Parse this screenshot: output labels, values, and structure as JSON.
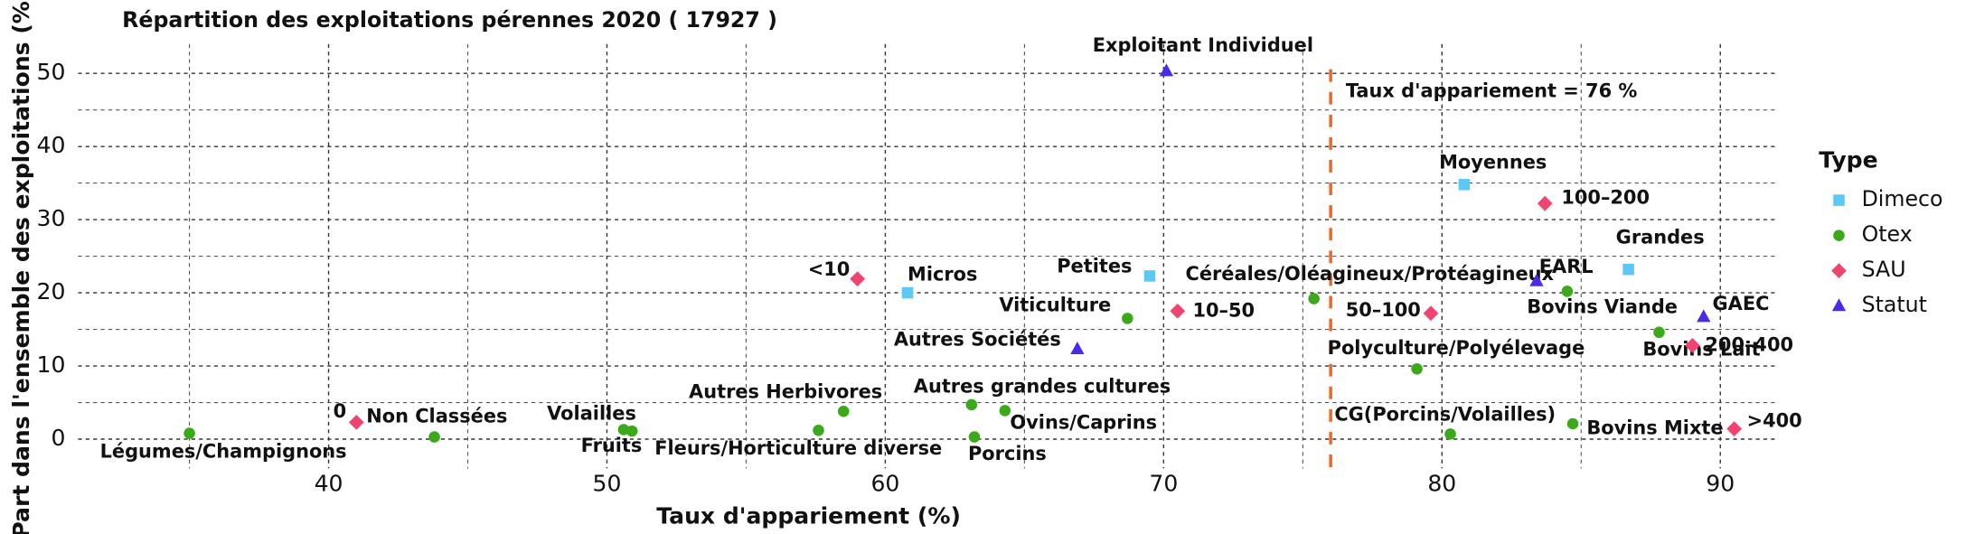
{
  "chart_data": {
    "type": "scatter",
    "title": "Répartition des exploitations pérennes 2020 ( 17927 )",
    "x_label": "Taux d'appariement (%)",
    "y_label": "Part dans l'ensemble des exploitations (%)",
    "xlim": [
      31,
      92
    ],
    "ylim": [
      -4,
      54
    ],
    "xticks": [
      40,
      50,
      60,
      70,
      80,
      90
    ],
    "yticks": [
      0,
      10,
      20,
      30,
      40,
      50
    ],
    "xminor_ticks": [
      35,
      45,
      55,
      65,
      75,
      85
    ],
    "yminor_ticks": [
      5,
      15,
      25,
      35,
      45
    ],
    "grid": true,
    "legend_title": "Type",
    "legend_position": "right",
    "vline": {
      "value": 76,
      "label": "Taux d'appariement = 76 %",
      "color": "#f26522"
    },
    "series": [
      {
        "name": "Dimeco",
        "color": "#5bc8f5",
        "marker": "square",
        "x": [
          60.8,
          69.5,
          80.8,
          86.7
        ],
        "values": [
          20,
          22.3,
          34.8,
          23.2
        ],
        "labels": [
          "Micros",
          "Petites",
          "Moyennes",
          "Grandes"
        ]
      },
      {
        "name": "Otex",
        "color": "#3aaa1a",
        "marker": "circle",
        "x": [
          35.0,
          43.8,
          50.6,
          50.9,
          57.6,
          58.5,
          63.1,
          63.2,
          64.3,
          68.7,
          75.4,
          79.1,
          80.3,
          84.5,
          87.8,
          84.7
        ],
        "values": [
          0.8,
          0.3,
          1.3,
          1.1,
          1.2,
          3.8,
          4.7,
          0.3,
          3.9,
          16.5,
          19.2,
          9.6,
          0.7,
          20.2,
          14.6,
          2.1
        ],
        "labels": [
          "Légumes/Champignons",
          "Non Classées",
          "Volailles",
          "Fruits",
          "Fleurs/Horticulture diverse",
          "Autres Herbivores",
          "Autres grandes cultures",
          "Porcins",
          "Ovins/Caprins",
          "Viticulture",
          "Céréales/Oléagineux/Protéagineux",
          "Polyculture/Polyélevage",
          "CG(Porcins/Volailles)",
          "Bovins Viande",
          "Bovins Lait",
          "Bovins Mixte"
        ]
      },
      {
        "name": "SAU",
        "color": "#f0436e",
        "marker": "diamond",
        "x": [
          41.0,
          59.0,
          70.5,
          79.6,
          83.7,
          89.0,
          90.5
        ],
        "values": [
          2.3,
          21.9,
          17.5,
          17.2,
          32.2,
          12.8,
          1.4
        ],
        "labels": [
          "0",
          "<10",
          "10–50",
          "50–100",
          "100–200",
          "200–400",
          ">400"
        ]
      },
      {
        "name": "Statut",
        "color": "#4b2be8",
        "marker": "triangle",
        "x": [
          70.1,
          66.9,
          83.4,
          89.4
        ],
        "values": [
          50.3,
          12.3,
          21.6,
          16.7
        ],
        "labels": [
          "Exploitant Individuel",
          "Autres Sociétés",
          "EARL",
          "GAEC"
        ]
      }
    ]
  }
}
